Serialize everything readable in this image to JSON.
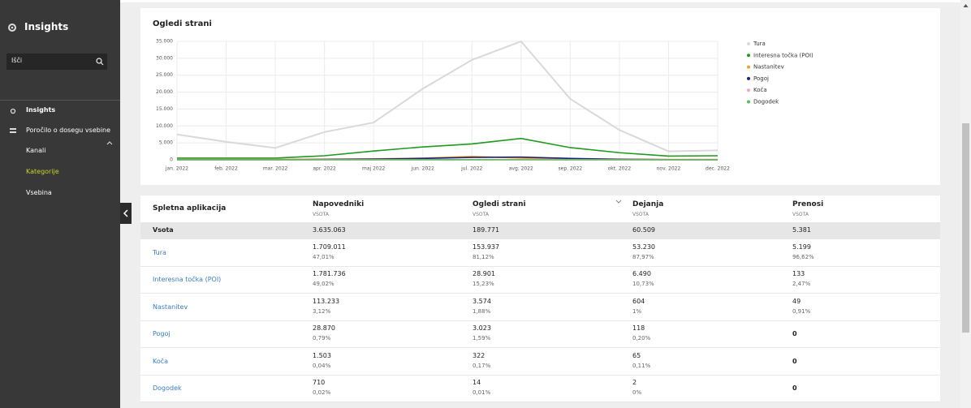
{
  "sidebar": {
    "title": "Insights",
    "search_placeholder": "Išči",
    "menu": [
      "Insights",
      "Poročilo o dosegu vsebine",
      "Kanali",
      "Kategorije",
      "Vsebina"
    ]
  },
  "chart_data": {
    "type": "line",
    "title": "Ogledi strani",
    "categories": [
      "jan. 2022",
      "feb. 2022",
      "mar. 2022",
      "apr. 2022",
      "maj 2022",
      "jun. 2022",
      "jul. 2022",
      "avg. 2022",
      "sep. 2022",
      "okt. 2022",
      "nov. 2022",
      "dec. 2022"
    ],
    "series": [
      {
        "name": "Tura",
        "color": "#d9d9d9",
        "values": [
          7500,
          5300,
          3500,
          8200,
          11000,
          21000,
          29500,
          35000,
          18000,
          8800,
          2500,
          2800
        ]
      },
      {
        "name": "Interesna točka (POI)",
        "color": "#1e9a1e",
        "values": [
          500,
          500,
          500,
          1200,
          2600,
          3800,
          4700,
          6300,
          3600,
          2100,
          1100,
          1200
        ]
      },
      {
        "name": "Nastanitev",
        "color": "#f0a030",
        "values": [
          100,
          100,
          100,
          200,
          300,
          500,
          1000,
          500,
          300,
          200,
          100,
          100
        ]
      },
      {
        "name": "Pogoj",
        "color": "#1a237e",
        "values": [
          50,
          50,
          50,
          100,
          200,
          400,
          700,
          800,
          400,
          150,
          50,
          50
        ]
      },
      {
        "name": "Koča",
        "color": "#f5a3c7",
        "values": [
          20,
          20,
          20,
          20,
          30,
          40,
          50,
          40,
          30,
          20,
          20,
          10
        ]
      },
      {
        "name": "Dogodek",
        "color": "#5cb85c",
        "values": [
          0,
          0,
          0,
          0,
          0,
          5,
          5,
          2,
          2,
          0,
          0,
          0
        ]
      }
    ],
    "ylim": [
      0,
      35000
    ],
    "yticks": [
      0,
      {
        "value": 5000,
        "label": "5.000"
      },
      {
        "value": 10000,
        "label": "10.000"
      },
      {
        "value": 15000,
        "label": "15.000"
      },
      {
        "value": 20000,
        "label": "20.000"
      },
      {
        "value": 25000,
        "label": "25.000"
      },
      {
        "value": 30000,
        "label": "30.000"
      },
      {
        "value": 35000,
        "label": "35.000"
      }
    ],
    "grid": true,
    "legend": "right"
  },
  "table": {
    "header": [
      {
        "title": "Spletna aplikacija"
      },
      {
        "title": "Napovedniki",
        "sub": "VSOTA"
      },
      {
        "title": "Ogledi strani",
        "sub": "VSOTA"
      },
      {
        "title": "Dejanja",
        "sub": "VSOTA"
      },
      {
        "title": "Prenosi",
        "sub": "VSOTA"
      }
    ],
    "total": [
      "Vsota",
      "3.635.063",
      "189.771",
      "60.509",
      "5.381"
    ],
    "rows": [
      {
        "name": "Tura",
        "cells": [
          {
            "value": "1.709.011",
            "share": "47,01%"
          },
          {
            "value": "153.937",
            "share": "81,12%"
          },
          {
            "value": "53.230",
            "share": "87,97%"
          },
          {
            "value": "5.199",
            "share": "96,62%"
          }
        ]
      },
      {
        "name": "Interesna točka (POI)",
        "cells": [
          {
            "value": "1.781.736",
            "share": "49,02%"
          },
          {
            "value": "28.901",
            "share": "15,23%"
          },
          {
            "value": "6.490",
            "share": "10,73%"
          },
          {
            "value": "133",
            "share": "2,47%"
          }
        ]
      },
      {
        "name": "Nastanitev",
        "cells": [
          {
            "value": "113.233",
            "share": "3,12%"
          },
          {
            "value": "3.574",
            "share": "1,88%"
          },
          {
            "value": "604",
            "share": "1%"
          },
          {
            "value": "49",
            "share": "0,91%"
          }
        ]
      },
      {
        "name": "Pogoj",
        "cells": [
          {
            "value": "28.870",
            "share": "0,79%"
          },
          {
            "value": "3.023",
            "share": "1,59%"
          },
          {
            "value": "118",
            "share": "0,20%"
          },
          {
            "value": "0"
          }
        ]
      },
      {
        "name": "Koča",
        "cells": [
          {
            "value": "1.503",
            "share": "0,04%"
          },
          {
            "value": "322",
            "share": "0,17%"
          },
          {
            "value": "65",
            "share": "0,11%"
          },
          {
            "value": "0"
          }
        ]
      },
      {
        "name": "Dogodek",
        "cells": [
          {
            "value": "710",
            "share": "0,02%"
          },
          {
            "value": "14",
            "share": "0,01%"
          },
          {
            "value": "2",
            "share": "0%"
          },
          {
            "value": "0"
          }
        ]
      }
    ]
  }
}
